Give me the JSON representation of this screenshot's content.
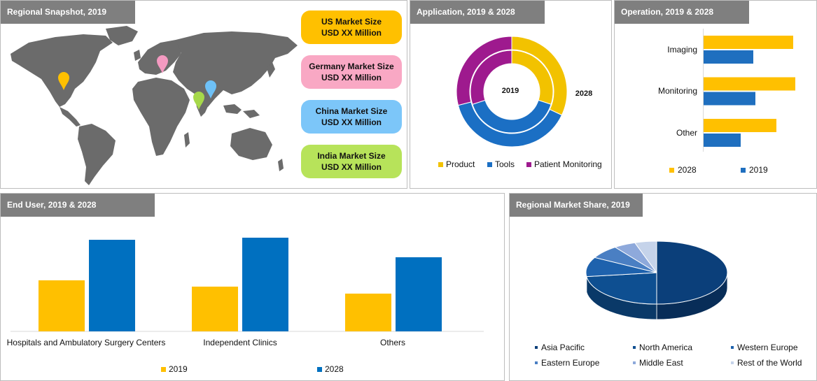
{
  "regional": {
    "title": "Regional Snapshot, 2019",
    "cards": [
      {
        "line1": "US Market Size",
        "line2": "USD XX Million",
        "color": "#ffc000",
        "pin": "#ffc000"
      },
      {
        "line1": "Germany Market Size",
        "line2": "USD XX Million",
        "color": "#f9a8c4",
        "pin": "#f49ac1"
      },
      {
        "line1": "China Market Size",
        "line2": "USD XX Million",
        "color": "#7cc6f9",
        "pin": "#6ec1f7"
      },
      {
        "line1": "India Market Size",
        "line2": "USD XX Million",
        "color": "#b7e35a",
        "pin": "#a6d84a"
      }
    ]
  },
  "application": {
    "title": "Application, 2019 & 2028",
    "inner_label": "2019",
    "outer_label": "2028",
    "legend": [
      {
        "label": "Product",
        "color": "#f2c200"
      },
      {
        "label": "Tools",
        "color": "#1b6fc4"
      },
      {
        "label": "Patient Monitoring",
        "color": "#9e1a8e"
      }
    ]
  },
  "operation": {
    "title": "Operation, 2019 & 2028",
    "legend": [
      {
        "label": "2028",
        "color": "#ffc000"
      },
      {
        "label": "2019",
        "color": "#1f6fbf"
      }
    ]
  },
  "end_user": {
    "title": "End User, 2019 & 2028",
    "legend": [
      {
        "label": "2019",
        "color": "#ffc000"
      },
      {
        "label": "2028",
        "color": "#0070c0"
      }
    ]
  },
  "share": {
    "title": "Regional Market Share, 2019",
    "legend": [
      {
        "label": "Asia Pacific",
        "color": "#0b3f7a"
      },
      {
        "label": "North America",
        "color": "#0e4f91"
      },
      {
        "label": "Western Europe",
        "color": "#1e62ad"
      },
      {
        "label": "Eastern Europe",
        "color": "#4a7fc3"
      },
      {
        "label": "Middle East",
        "color": "#8ea9db"
      },
      {
        "label": "Rest of the World",
        "color": "#c5d3ea"
      }
    ]
  },
  "chart_data": [
    {
      "type": "pie",
      "title": "Application, 2019 & 2028",
      "categories": [
        "Product",
        "Tools",
        "Patient Monitoring"
      ],
      "series": [
        {
          "name": "2019",
          "values": [
            30,
            40,
            30
          ]
        },
        {
          "name": "2028",
          "values": [
            32,
            39,
            29
          ]
        }
      ]
    },
    {
      "type": "bar",
      "title": "Operation, 2019 & 2028",
      "orientation": "horizontal",
      "categories": [
        "Imaging",
        "Monitoring",
        "Other"
      ],
      "series": [
        {
          "name": "2028",
          "values": [
            128,
            131,
            104
          ]
        },
        {
          "name": "2019",
          "values": [
            71,
            74,
            53
          ]
        }
      ]
    },
    {
      "type": "bar",
      "title": "End User, 2019 & 2028",
      "categories": [
        "Hospitals and Ambulatory Surgery Centers",
        "Independent Clinics",
        "Others"
      ],
      "series": [
        {
          "name": "2019",
          "values": [
            73,
            64,
            54
          ]
        },
        {
          "name": "2028",
          "values": [
            131,
            134,
            106
          ]
        }
      ]
    },
    {
      "type": "pie",
      "title": "Regional Market Share, 2019",
      "categories": [
        "Asia Pacific",
        "North America",
        "Western Europe",
        "Eastern Europe",
        "Middle East",
        "Rest of the World"
      ],
      "values": [
        50,
        23,
        10,
        7,
        5,
        5
      ]
    }
  ]
}
